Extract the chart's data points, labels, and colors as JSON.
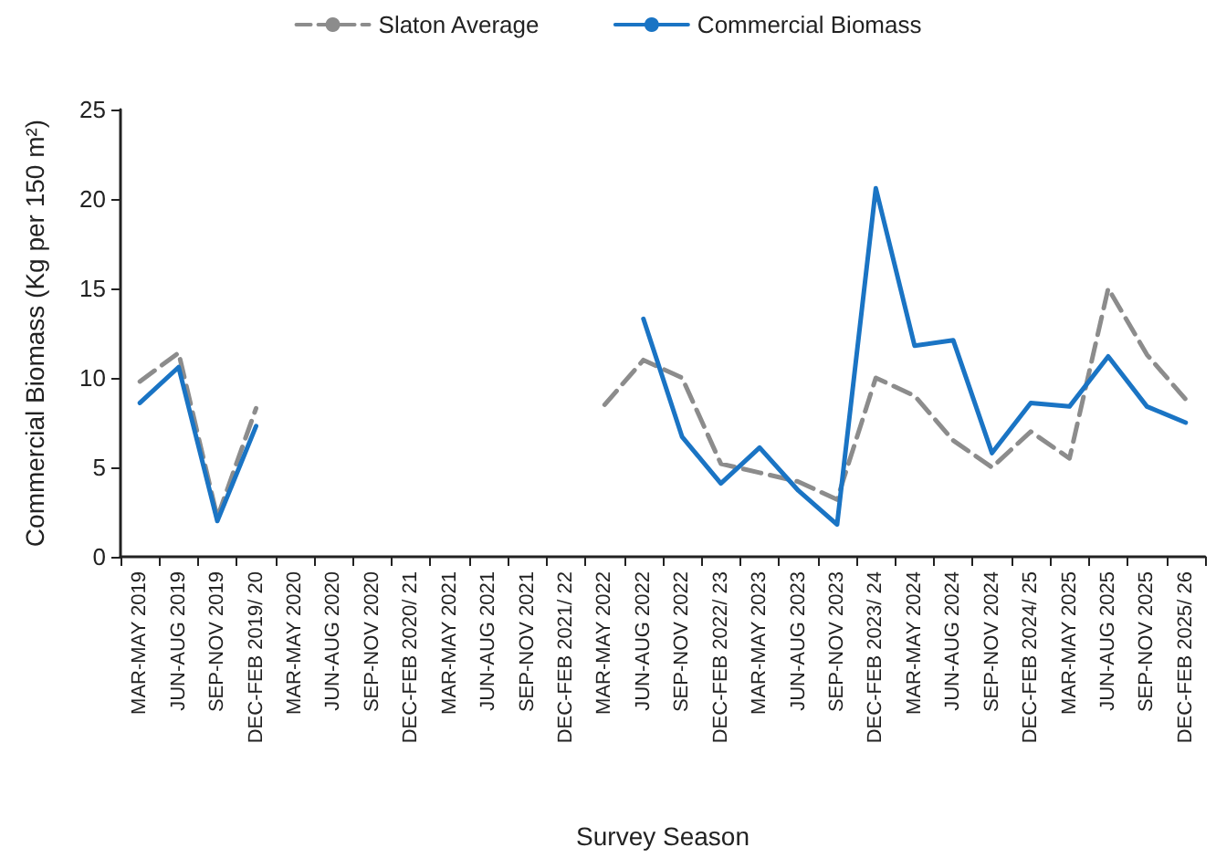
{
  "chart_data": {
    "type": "line",
    "xlabel": "Survey Season",
    "ylabel": "Commercial Biomass (Kg per 150 m²)",
    "categories": [
      "MAR-MAY 2019",
      "JUN-AUG 2019",
      "SEP-NOV 2019",
      "DEC-FEB 2019/ 20",
      "MAR-MAY 2020",
      "JUN-AUG 2020",
      "SEP-NOV 2020",
      "DEC-FEB 2020/ 21",
      "MAR-MAY 2021",
      "JUN-AUG 2021",
      "SEP-NOV 2021",
      "DEC-FEB 2021/ 22",
      "MAR-MAY 2022",
      "JUN-AUG 2022",
      "SEP-NOV 2022",
      "DEC-FEB 2022/ 23",
      "MAR-MAY 2023",
      "JUN-AUG 2023",
      "SEP-NOV 2023",
      "DEC-FEB 2023/ 24",
      "MAR-MAY 2024",
      "JUN-AUG 2024",
      "SEP-NOV 2024",
      "DEC-FEB 2024/ 25",
      "MAR-MAY 2025",
      "JUN-AUG 2025",
      "SEP-NOV 2025",
      "DEC-FEB 2025/ 26"
    ],
    "series": [
      {
        "name": "Slaton Average",
        "color": "#8c8c8c",
        "line_style": "dashed",
        "values": [
          9.8,
          11.4,
          2.2,
          8.3,
          null,
          null,
          null,
          null,
          null,
          null,
          null,
          null,
          8.5,
          11.0,
          10.0,
          5.2,
          4.7,
          4.2,
          3.2,
          10.0,
          9.0,
          6.5,
          5.0,
          7.0,
          5.5,
          15.0,
          11.3,
          8.8
        ]
      },
      {
        "name": "Commercial Biomass",
        "color": "#1a74c4",
        "line_style": "solid",
        "values": [
          8.6,
          10.6,
          2.0,
          7.3,
          null,
          null,
          null,
          null,
          null,
          null,
          null,
          null,
          null,
          13.3,
          6.7,
          4.1,
          6.1,
          3.7,
          1.8,
          20.6,
          11.8,
          12.1,
          5.8,
          8.6,
          8.4,
          11.2,
          8.4,
          7.5
        ]
      }
    ],
    "ylim": [
      0,
      25
    ],
    "yticks": [
      0,
      5,
      10,
      15,
      20,
      25
    ],
    "grid": false,
    "legend": "top",
    "marker": "none"
  }
}
